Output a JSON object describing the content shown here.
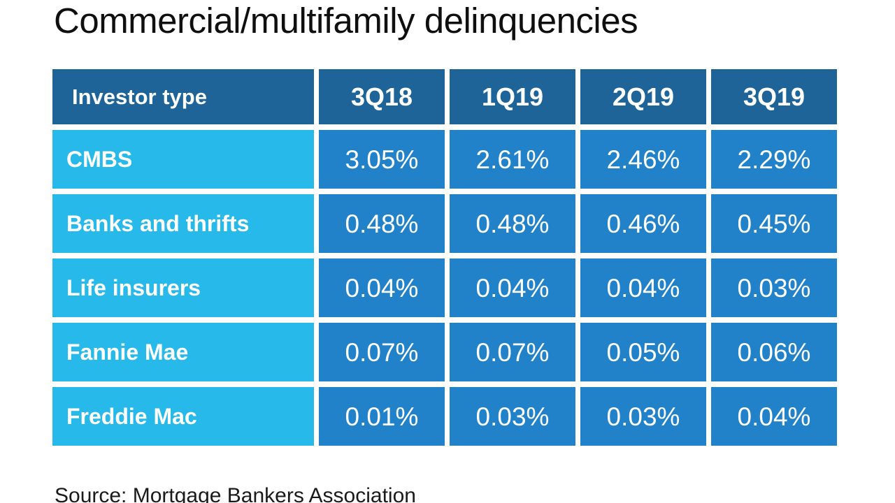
{
  "page": {
    "title": "Commercial/multifamily delinquencies",
    "source": "Source: Mortgage Bankers Association"
  },
  "chart_data": {
    "type": "table",
    "title": "Commercial/multifamily delinquencies",
    "columns": [
      "Investor type",
      "3Q18",
      "1Q19",
      "2Q19",
      "3Q19"
    ],
    "rows": [
      {
        "label": "CMBS",
        "values": [
          "3.05%",
          "2.61%",
          "2.46%",
          "2.29%"
        ]
      },
      {
        "label": "Banks and thrifts",
        "values": [
          "0.48%",
          "0.48%",
          "0.46%",
          "0.45%"
        ]
      },
      {
        "label": "Life insurers",
        "values": [
          "0.04%",
          "0.04%",
          "0.04%",
          "0.03%"
        ]
      },
      {
        "label": "Fannie Mae",
        "values": [
          "0.07%",
          "0.07%",
          "0.05%",
          "0.06%"
        ]
      },
      {
        "label": "Freddie Mac",
        "values": [
          "0.01%",
          "0.03%",
          "0.03%",
          "0.04%"
        ]
      }
    ],
    "source": "Source: Mortgage Bankers Association",
    "colors": {
      "header_bg": "#1e6498",
      "row_label_bg": "#27b9ea",
      "value_cell_bg": "#2182ca",
      "cell_text": "#ffffff",
      "title_text": "#0f0f0f"
    },
    "layout_hints": {
      "grid": "off",
      "legend": "none",
      "value_alignment": "center",
      "label_alignment": "left"
    }
  }
}
